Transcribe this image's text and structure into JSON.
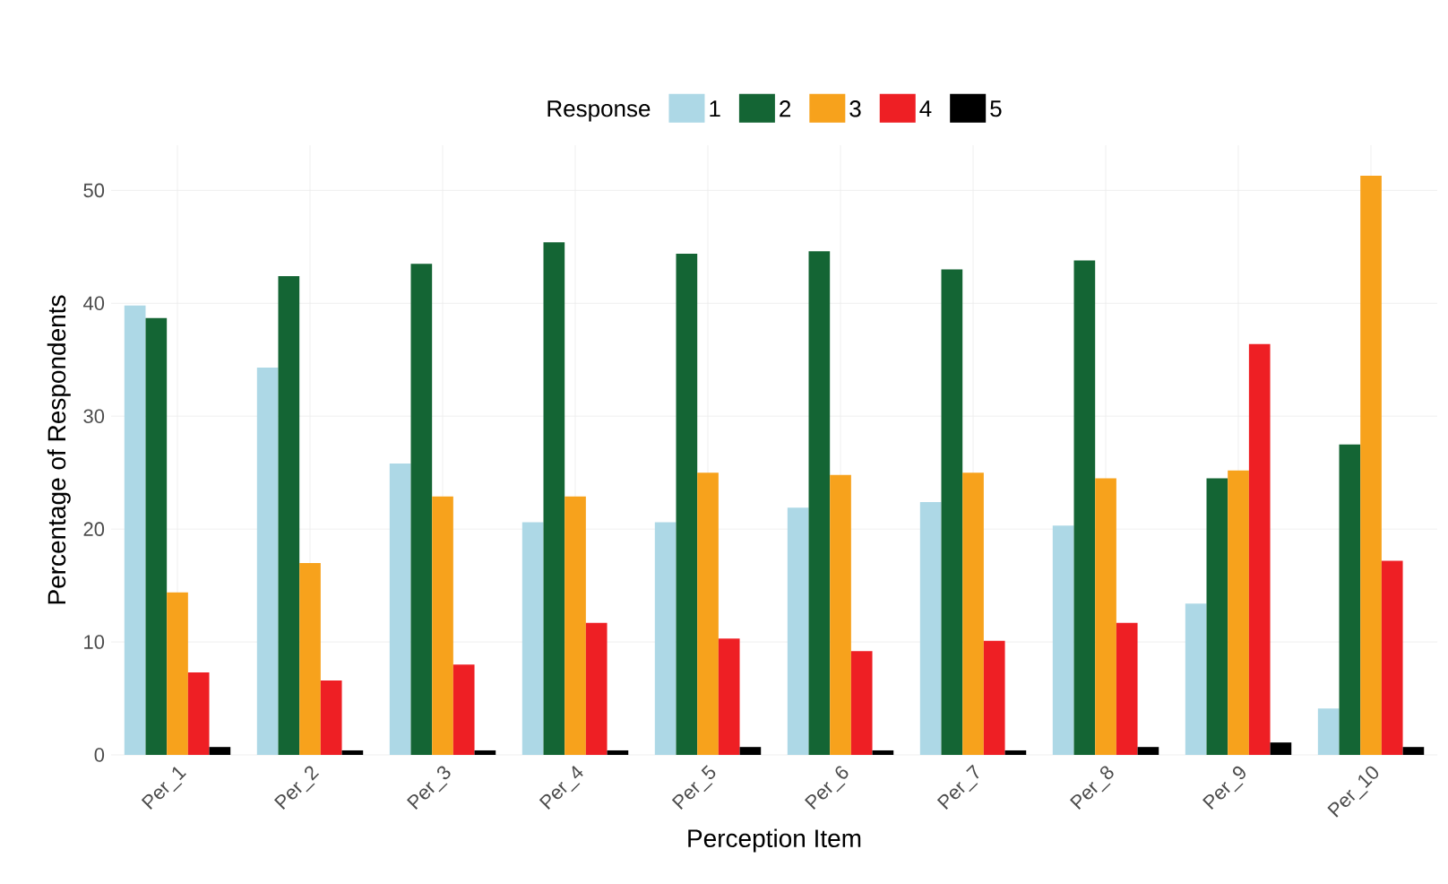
{
  "chart_data": {
    "type": "bar",
    "xlabel": "Perception Item",
    "ylabel": "Percentage of Respondents",
    "legend_title": "Response",
    "categories": [
      "Per_1",
      "Per_2",
      "Per_3",
      "Per_4",
      "Per_5",
      "Per_6",
      "Per_7",
      "Per_8",
      "Per_9",
      "Per_10"
    ],
    "series": [
      {
        "name": "1",
        "color": "#add8e6",
        "values": [
          39.8,
          34.3,
          25.8,
          20.6,
          20.6,
          21.9,
          22.4,
          20.3,
          13.4,
          4.1
        ]
      },
      {
        "name": "2",
        "color": "#146534",
        "values": [
          38.7,
          42.4,
          43.5,
          45.4,
          44.4,
          44.6,
          43.0,
          43.8,
          24.5,
          27.5
        ]
      },
      {
        "name": "3",
        "color": "#f7a21c",
        "values": [
          14.4,
          17.0,
          22.9,
          22.9,
          25.0,
          24.8,
          25.0,
          24.5,
          25.2,
          51.3
        ]
      },
      {
        "name": "4",
        "color": "#ee1f24",
        "values": [
          7.3,
          6.6,
          8.0,
          11.7,
          10.3,
          9.2,
          10.1,
          11.7,
          36.4,
          17.2
        ]
      },
      {
        "name": "5",
        "color": "#000000",
        "values": [
          0.7,
          0.4,
          0.4,
          0.4,
          0.7,
          0.4,
          0.4,
          0.7,
          1.1,
          0.7
        ]
      }
    ],
    "ylim": [
      0,
      54
    ],
    "yticks": [
      0,
      10,
      20,
      30,
      40,
      50
    ],
    "grid": true,
    "legend": "top"
  }
}
